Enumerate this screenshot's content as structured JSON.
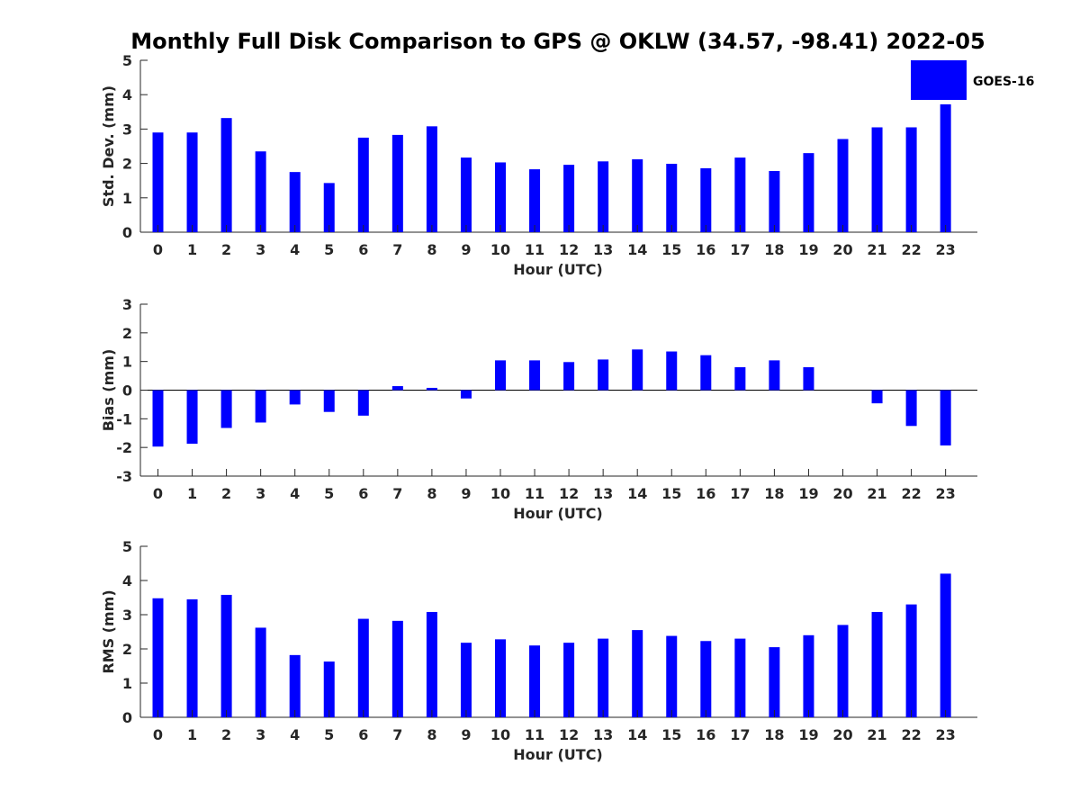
{
  "figure": {
    "title": "Monthly Full Disk Comparison to GPS @ OKLW (34.57, -98.41) 2022-05"
  },
  "legend": {
    "label": "GOES-16",
    "placement": "top-right",
    "color": "#0000ff"
  },
  "chart_data": [
    {
      "type": "bar",
      "title": "",
      "xlabel": "Hour (UTC)",
      "ylabel": "Std. Dev. (mm)",
      "ylim": [
        0,
        5
      ],
      "yticks": [
        0,
        1,
        2,
        3,
        4,
        5
      ],
      "categories": [
        "0",
        "1",
        "2",
        "3",
        "4",
        "5",
        "6",
        "7",
        "8",
        "9",
        "10",
        "11",
        "12",
        "13",
        "14",
        "15",
        "16",
        "17",
        "18",
        "19",
        "20",
        "21",
        "22",
        "23"
      ],
      "series": [
        {
          "name": "GOES-16",
          "color": "#0000ff",
          "values": [
            2.9,
            2.9,
            3.32,
            2.35,
            1.75,
            1.43,
            2.75,
            2.83,
            3.08,
            2.17,
            2.03,
            1.83,
            1.96,
            2.06,
            2.12,
            1.99,
            1.86,
            2.17,
            1.78,
            2.3,
            2.71,
            3.05,
            3.05,
            3.72
          ]
        }
      ]
    },
    {
      "type": "bar",
      "title": "",
      "xlabel": "Hour (UTC)",
      "ylabel": "Bias (mm)",
      "ylim": [
        -3,
        3
      ],
      "yticks": [
        -3,
        -2,
        -1,
        0,
        1,
        2,
        3
      ],
      "zero_line": true,
      "categories": [
        "0",
        "1",
        "2",
        "3",
        "4",
        "5",
        "6",
        "7",
        "8",
        "9",
        "10",
        "11",
        "12",
        "13",
        "14",
        "15",
        "16",
        "17",
        "18",
        "19",
        "20",
        "21",
        "22",
        "23"
      ],
      "series": [
        {
          "name": "GOES-16",
          "color": "#0000ff",
          "values": [
            -1.97,
            -1.87,
            -1.32,
            -1.13,
            -0.5,
            -0.76,
            -0.89,
            0.14,
            0.08,
            -0.29,
            1.04,
            1.04,
            0.98,
            1.07,
            1.42,
            1.35,
            1.22,
            0.8,
            1.04,
            0.8,
            0.0,
            -0.46,
            -1.25,
            -1.93
          ]
        }
      ]
    },
    {
      "type": "bar",
      "title": "",
      "xlabel": "Hour (UTC)",
      "ylabel": "RMS (mm)",
      "ylim": [
        0,
        5
      ],
      "yticks": [
        0,
        1,
        2,
        3,
        4,
        5
      ],
      "categories": [
        "0",
        "1",
        "2",
        "3",
        "4",
        "5",
        "6",
        "7",
        "8",
        "9",
        "10",
        "11",
        "12",
        "13",
        "14",
        "15",
        "16",
        "17",
        "18",
        "19",
        "20",
        "21",
        "22",
        "23"
      ],
      "series": [
        {
          "name": "GOES-16",
          "color": "#0000ff",
          "values": [
            3.48,
            3.45,
            3.58,
            2.62,
            1.82,
            1.63,
            2.88,
            2.82,
            3.08,
            2.18,
            2.28,
            2.1,
            2.18,
            2.3,
            2.55,
            2.38,
            2.23,
            2.3,
            2.05,
            2.4,
            2.7,
            3.08,
            3.3,
            4.2
          ]
        }
      ]
    }
  ]
}
